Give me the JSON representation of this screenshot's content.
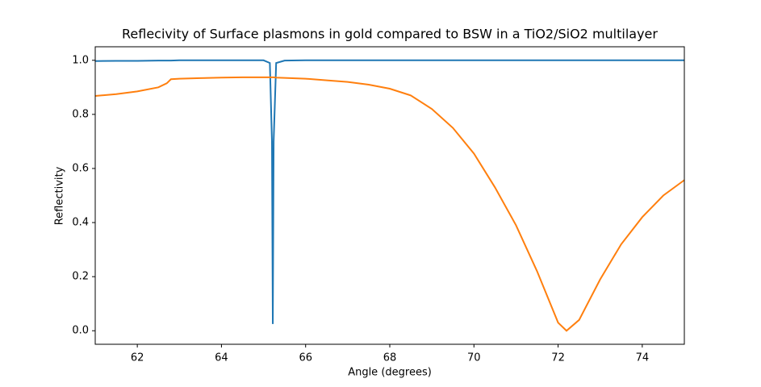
{
  "chart_data": {
    "type": "line",
    "title": "Reflecivity of Surface plasmons in gold compared to BSW in a TiO2/SiO2 multilayer",
    "x_label": "Angle (degrees)",
    "y_label": "Reflectivity",
    "x": [
      61,
      61.5,
      62,
      62.5,
      62.7,
      62.8,
      63,
      63.5,
      64,
      64.5,
      65,
      65.15,
      65.2,
      65.22,
      65.24,
      65.3,
      65.5,
      66,
      66.5,
      67,
      67.5,
      68,
      68.5,
      69,
      69.5,
      70,
      70.5,
      71,
      71.5,
      72,
      72.2,
      72.5,
      73,
      73.5,
      74,
      74.5,
      75
    ],
    "series": [
      {
        "color": "#1f77b4",
        "values": [
          0.997,
          0.998,
          0.998,
          0.999,
          0.999,
          0.999,
          1.0,
          1.0,
          1.0,
          1.0,
          1.0,
          0.99,
          0.7,
          0.025,
          0.7,
          0.99,
          0.999,
          1.0,
          1.0,
          1.0,
          1.0,
          1.0,
          1.0,
          1.0,
          1.0,
          1.0,
          1.0,
          1.0,
          1.0,
          1.0,
          1.0,
          1.0,
          1.0,
          1.0,
          1.0,
          1.0,
          1.0
        ]
      },
      {
        "color": "#ff7f0e",
        "values": [
          0.868,
          0.875,
          0.885,
          0.9,
          0.915,
          0.93,
          0.932,
          0.934,
          0.936,
          0.937,
          0.937,
          0.937,
          0.937,
          0.937,
          0.937,
          0.936,
          0.935,
          0.932,
          0.926,
          0.92,
          0.91,
          0.895,
          0.87,
          0.82,
          0.75,
          0.655,
          0.53,
          0.39,
          0.22,
          0.03,
          0.0,
          0.04,
          0.19,
          0.32,
          0.42,
          0.5,
          0.557
        ]
      }
    ],
    "xlim": [
      61,
      75
    ],
    "ylim": [
      -0.05,
      1.05
    ],
    "xticks": [
      62,
      64,
      66,
      68,
      70,
      72,
      74
    ],
    "yticks": [
      {
        "value": 0,
        "label": "0.0"
      },
      0.2,
      0.4,
      0.6,
      0.8,
      {
        "value": 1,
        "label": "1.0"
      }
    ],
    "grid": false
  }
}
